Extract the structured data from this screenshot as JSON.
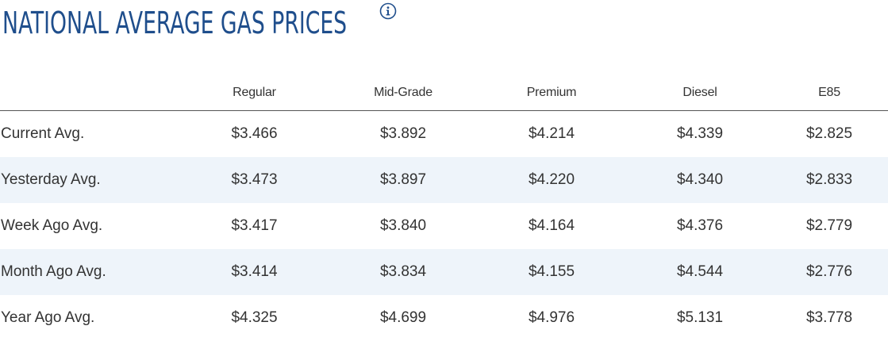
{
  "header": {
    "title": "NATIONAL AVERAGE GAS PRICES",
    "info_icon": "info-circle-icon",
    "accent_color": "#1f4e8c"
  },
  "table": {
    "columns": [
      "",
      "Regular",
      "Mid-Grade",
      "Premium",
      "Diesel",
      "E85"
    ],
    "rows": [
      {
        "label": "Current Avg.",
        "values": [
          "$3.466",
          "$3.892",
          "$4.214",
          "$4.339",
          "$2.825"
        ]
      },
      {
        "label": "Yesterday Avg.",
        "values": [
          "$3.473",
          "$3.897",
          "$4.220",
          "$4.340",
          "$2.833"
        ]
      },
      {
        "label": "Week Ago Avg.",
        "values": [
          "$3.417",
          "$3.840",
          "$4.164",
          "$4.376",
          "$2.779"
        ]
      },
      {
        "label": "Month Ago Avg.",
        "values": [
          "$3.414",
          "$3.834",
          "$4.155",
          "$4.544",
          "$2.776"
        ]
      },
      {
        "label": "Year Ago Avg.",
        "values": [
          "$4.325",
          "$4.699",
          "$4.976",
          "$5.131",
          "$3.778"
        ]
      }
    ],
    "stripe_color": "#eef4fa"
  }
}
